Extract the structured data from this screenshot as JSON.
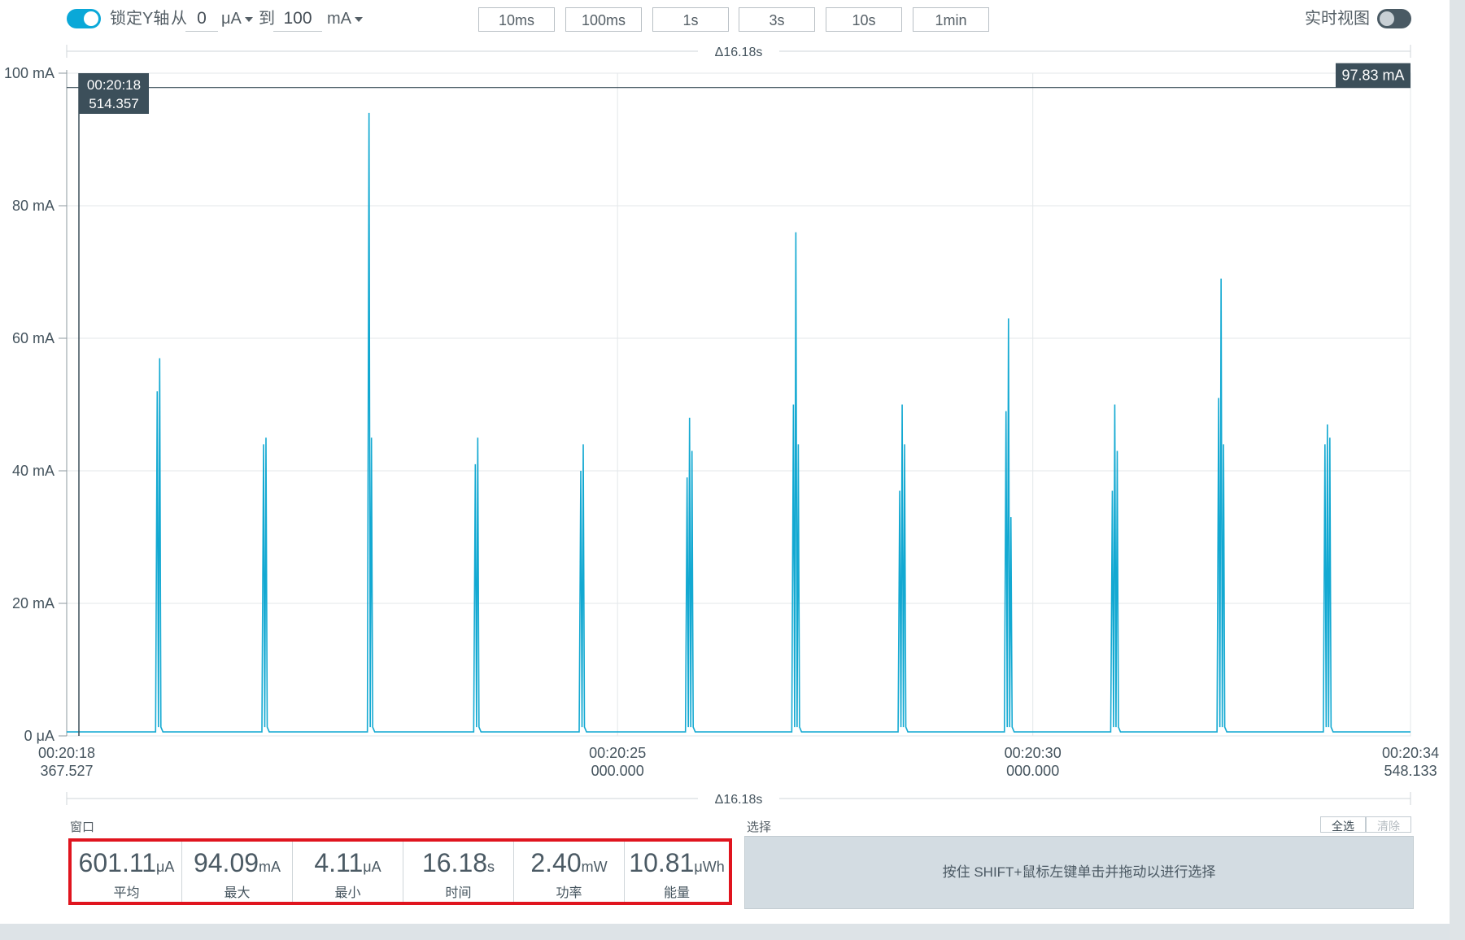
{
  "colors": {
    "accent": "#0aa8d8",
    "trace": "#13a9d2",
    "label_bg": "#3c4f5a",
    "highlight": "#e0141e"
  },
  "toolbar": {
    "lock_y_label": "锁定Y轴",
    "lock_y_enabled": true,
    "from_label": "从",
    "from_value": "0",
    "from_unit": "μA",
    "to_label": "到",
    "to_value": "100",
    "to_unit": "mA",
    "time_buttons": [
      "10ms",
      "100ms",
      "1s",
      "3s",
      "10s",
      "1min"
    ],
    "realtime_label": "实时视图",
    "realtime_enabled": false
  },
  "chart_data": {
    "type": "line",
    "title": "",
    "ylabel": "",
    "xlabel": "",
    "grid": true,
    "ylim": [
      0,
      100
    ],
    "xlim": [
      0,
      16.18
    ],
    "y_tick_labels": [
      "0 μA",
      "20 mA",
      "40 mA",
      "60 mA",
      "80 mA",
      "100 mA"
    ],
    "x_tick_labels": [
      {
        "t": 0,
        "line1": "00:20:18",
        "line2": "367.527"
      },
      {
        "t": 6.6325,
        "line1": "00:20:25",
        "line2": "000.000"
      },
      {
        "t": 11.6325,
        "line1": "00:20:30",
        "line2": "000.000"
      },
      {
        "t": 16.1806,
        "line1": "00:20:34",
        "line2": "548.133"
      }
    ],
    "delta_label": "Δ16.18s",
    "cursor_time": "00:20:18",
    "cursor_time_sub": "514.357",
    "cursor_t": 0.147,
    "level_label": "97.83 mA",
    "level_value": 97.83,
    "baseline": 0.6,
    "series": [
      {
        "values": [
          {
            "t": 1.09,
            "peaks": [
              52,
              57
            ]
          },
          {
            "t": 2.37,
            "peaks": [
              44,
              45
            ]
          },
          {
            "t": 3.64,
            "peaks": [
              94,
              45
            ]
          },
          {
            "t": 4.92,
            "peaks": [
              41,
              45
            ]
          },
          {
            "t": 6.19,
            "peaks": [
              40,
              44
            ]
          },
          {
            "t": 7.47,
            "peaks": [
              39,
              48,
              43
            ]
          },
          {
            "t": 8.75,
            "peaks": [
              50,
              76,
              44
            ]
          },
          {
            "t": 10.03,
            "peaks": [
              37,
              50,
              44
            ]
          },
          {
            "t": 11.31,
            "peaks": [
              49,
              63,
              33
            ]
          },
          {
            "t": 12.59,
            "peaks": [
              37,
              50,
              43
            ]
          },
          {
            "t": 13.87,
            "peaks": [
              51,
              69,
              44
            ]
          },
          {
            "t": 15.15,
            "peaks": [
              44,
              47,
              45
            ]
          }
        ]
      }
    ]
  },
  "window_panel": {
    "label": "窗口",
    "stats": [
      {
        "value": "601.11",
        "unit": "μA",
        "label": "平均"
      },
      {
        "value": "94.09",
        "unit": "mA",
        "label": "最大"
      },
      {
        "value": "4.11",
        "unit": "μA",
        "label": "最小"
      },
      {
        "value": "16.18",
        "unit": "s",
        "label": "时间"
      },
      {
        "value": "2.40",
        "unit": "mW",
        "label": "功率"
      },
      {
        "value": "10.81",
        "unit": "μWh",
        "label": "能量"
      }
    ]
  },
  "selection_panel": {
    "label": "选择",
    "select_all": "全选",
    "clear": "清除",
    "hint": "按住 SHIFT+鼠标左键单击并拖动以进行选择"
  }
}
